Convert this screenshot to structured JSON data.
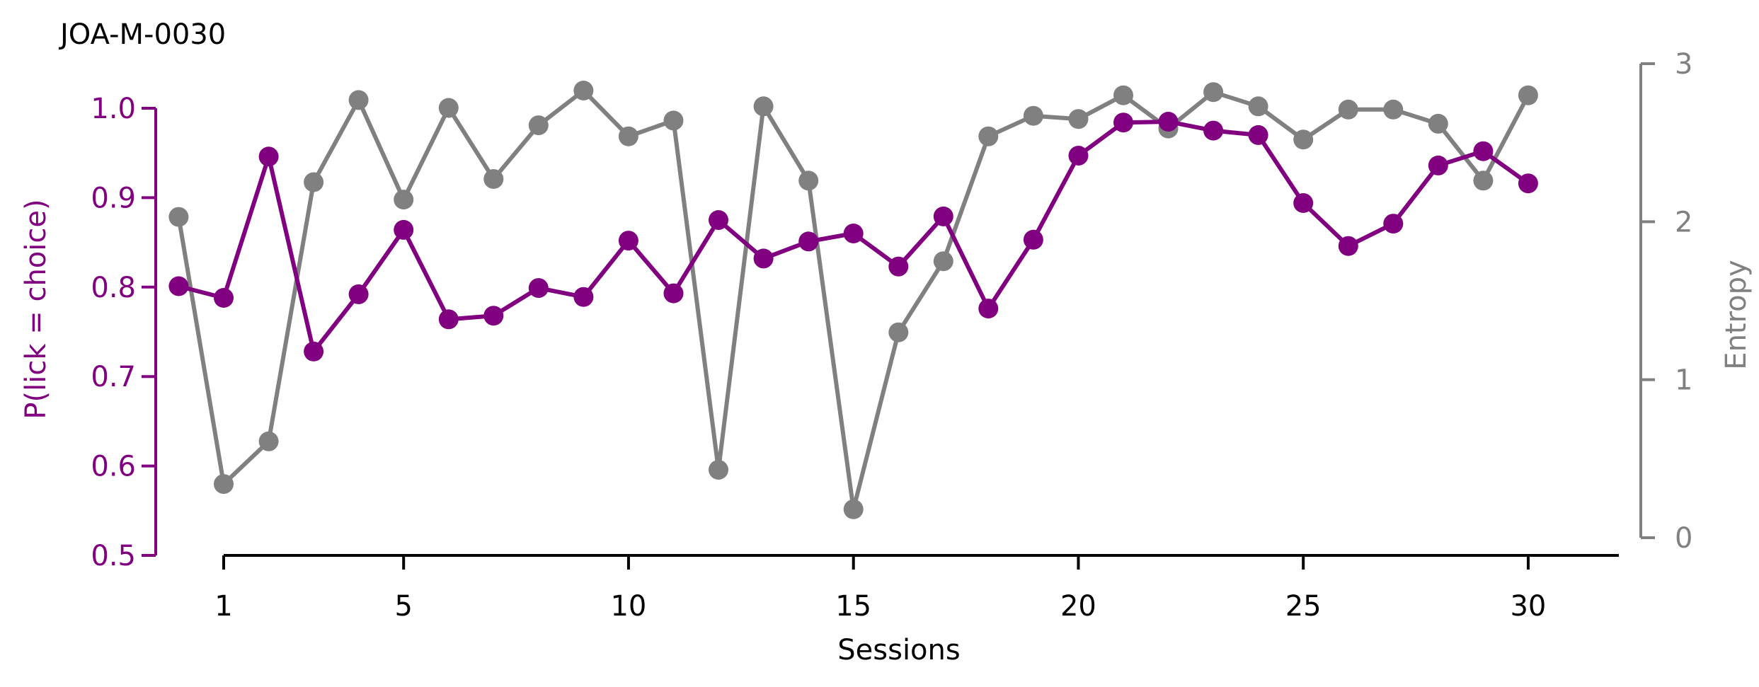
{
  "chart_data": {
    "type": "line",
    "title": "JOA-M-0030",
    "xlabel": "Sessions",
    "ylabel_left": "P(lick = choice)",
    "ylabel_right": "Entropy",
    "xlim": [
      1,
      30
    ],
    "ylim_left": [
      0.5,
      1.0
    ],
    "ylim_right": [
      0,
      3
    ],
    "x_ticks": [
      1,
      5,
      10,
      15,
      20,
      25,
      30
    ],
    "y_ticks_left": [
      "0.5",
      "0.6",
      "0.7",
      "0.8",
      "0.9",
      "1.0"
    ],
    "y_ticks_right": [
      "0",
      "1",
      "2",
      "3"
    ],
    "grid": false,
    "left_color": "#800080",
    "right_color": "#808080",
    "x": [
      0,
      1,
      2,
      3,
      4,
      5,
      6,
      7,
      8,
      9,
      10,
      11,
      12,
      13,
      14,
      15,
      16,
      17,
      18,
      19,
      20,
      21,
      22,
      23,
      24,
      25,
      26,
      27,
      28,
      29,
      30
    ],
    "series": [
      {
        "axis": "left",
        "color": "#800080",
        "values": [
          0.801,
          0.788,
          0.946,
          0.728,
          0.792,
          0.864,
          0.764,
          0.768,
          0.799,
          0.789,
          0.852,
          0.793,
          0.875,
          0.832,
          0.851,
          0.86,
          0.823,
          0.879,
          0.776,
          0.853,
          0.947,
          0.984,
          0.985,
          0.975,
          0.97,
          0.894,
          0.846,
          0.871,
          0.936,
          0.952,
          0.916
        ]
      },
      {
        "axis": "right",
        "color": "#808080",
        "values": [
          2.03,
          0.34,
          0.61,
          2.25,
          2.77,
          2.14,
          2.72,
          2.27,
          2.61,
          2.83,
          2.54,
          2.64,
          0.43,
          2.73,
          2.26,
          0.18,
          1.3,
          1.75,
          2.54,
          2.67,
          2.65,
          2.8,
          2.59,
          2.82,
          2.73,
          2.52,
          2.71,
          2.71,
          2.62,
          2.26,
          2.8
        ]
      }
    ]
  }
}
